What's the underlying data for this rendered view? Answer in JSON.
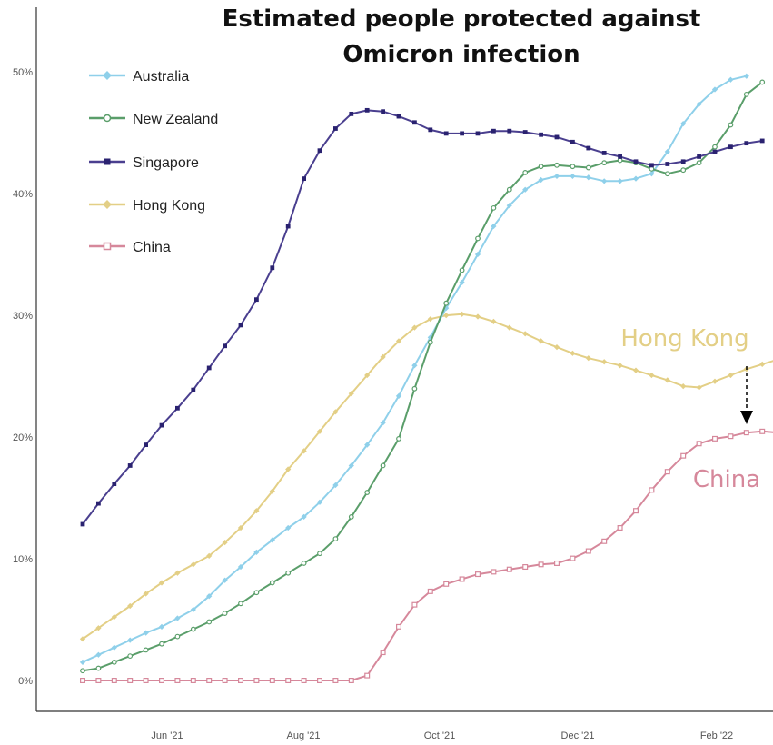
{
  "chart_data": {
    "type": "line",
    "title_lines": [
      "Estimated people protected against",
      "Omicron infection"
    ],
    "xlabel": "",
    "ylabel": "",
    "x_ticks": [
      "Jun '21",
      "Aug '21",
      "Oct '21",
      "Dec '21",
      "Feb '22"
    ],
    "y_ticks": [
      "0%",
      "10%",
      "20%",
      "30%",
      "40%",
      "50%"
    ],
    "ylim": [
      0,
      50
    ],
    "grid": false,
    "legend_position": "top-left",
    "x_start": "2021-04-15",
    "x_step_days": 7,
    "series": [
      {
        "name": "Australia",
        "color": "#8fd0ea",
        "marker": "diamond",
        "values": [
          1.5,
          2.1,
          2.7,
          3.3,
          3.9,
          4.4,
          5.1,
          5.8,
          6.9,
          8.2,
          9.3,
          10.5,
          11.5,
          12.5,
          13.4,
          14.6,
          16.0,
          17.6,
          19.3,
          21.1,
          23.3,
          25.8,
          28.1,
          30.5,
          32.6,
          34.9,
          37.2,
          38.9,
          40.2,
          41.0,
          41.3,
          41.3,
          41.2,
          40.9,
          40.9,
          41.1,
          41.5,
          43.3,
          45.6,
          47.2,
          48.4,
          49.2,
          49.5
        ]
      },
      {
        "name": "New Zealand",
        "color": "#5a9e6a",
        "marker": "circle",
        "values": [
          0.8,
          1.0,
          1.5,
          2.0,
          2.5,
          3.0,
          3.6,
          4.2,
          4.8,
          5.5,
          6.3,
          7.2,
          8.0,
          8.8,
          9.6,
          10.4,
          11.6,
          13.4,
          15.4,
          17.6,
          19.8,
          23.9,
          27.7,
          30.9,
          33.6,
          36.2,
          38.7,
          40.2,
          41.6,
          42.1,
          42.2,
          42.1,
          42.0,
          42.4,
          42.6,
          42.4,
          41.9,
          41.5,
          41.8,
          42.4,
          43.7,
          45.5,
          48.0,
          49.0
        ]
      },
      {
        "name": "Singapore",
        "color": "#4a3f8f",
        "marker": "square",
        "values": [
          12.8,
          14.5,
          16.1,
          17.6,
          19.3,
          20.9,
          22.3,
          23.8,
          25.6,
          27.4,
          29.1,
          31.2,
          33.8,
          37.2,
          41.1,
          43.4,
          45.2,
          46.4,
          46.7,
          46.6,
          46.2,
          45.7,
          45.1,
          44.8,
          44.8,
          44.8,
          45.0,
          45.0,
          44.9,
          44.7,
          44.5,
          44.1,
          43.6,
          43.2,
          42.9,
          42.5,
          42.2,
          42.3,
          42.5,
          42.9,
          43.3,
          43.7,
          44.0,
          44.2
        ]
      },
      {
        "name": "Hong Kong",
        "color": "#e3cf86",
        "marker": "diamond",
        "values": [
          3.4,
          4.3,
          5.2,
          6.1,
          7.1,
          8.0,
          8.8,
          9.5,
          10.2,
          11.3,
          12.5,
          13.9,
          15.5,
          17.3,
          18.8,
          20.4,
          22.0,
          23.5,
          25.0,
          26.5,
          27.8,
          28.9,
          29.6,
          29.9,
          30.0,
          29.8,
          29.4,
          28.9,
          28.4,
          27.8,
          27.3,
          26.8,
          26.4,
          26.1,
          25.8,
          25.4,
          25.0,
          24.6,
          24.1,
          24.0,
          24.5,
          25.0,
          25.5,
          25.9,
          26.3
        ]
      },
      {
        "name": "China",
        "color": "#d6889b",
        "marker": "square",
        "values": [
          0,
          0,
          0,
          0,
          0,
          0,
          0,
          0,
          0,
          0,
          0,
          0,
          0,
          0,
          0,
          0,
          0,
          0,
          0.4,
          2.3,
          4.4,
          6.2,
          7.3,
          7.9,
          8.3,
          8.7,
          8.9,
          9.1,
          9.3,
          9.5,
          9.6,
          10.0,
          10.6,
          11.4,
          12.5,
          13.9,
          15.6,
          17.1,
          18.4,
          19.4,
          19.8,
          20.0,
          20.3,
          20.4,
          20.3
        ]
      }
    ],
    "annotations": [
      {
        "text": "Hong Kong",
        "color": "#e3cf86"
      },
      {
        "text": "China",
        "color": "#d6889b"
      }
    ]
  }
}
